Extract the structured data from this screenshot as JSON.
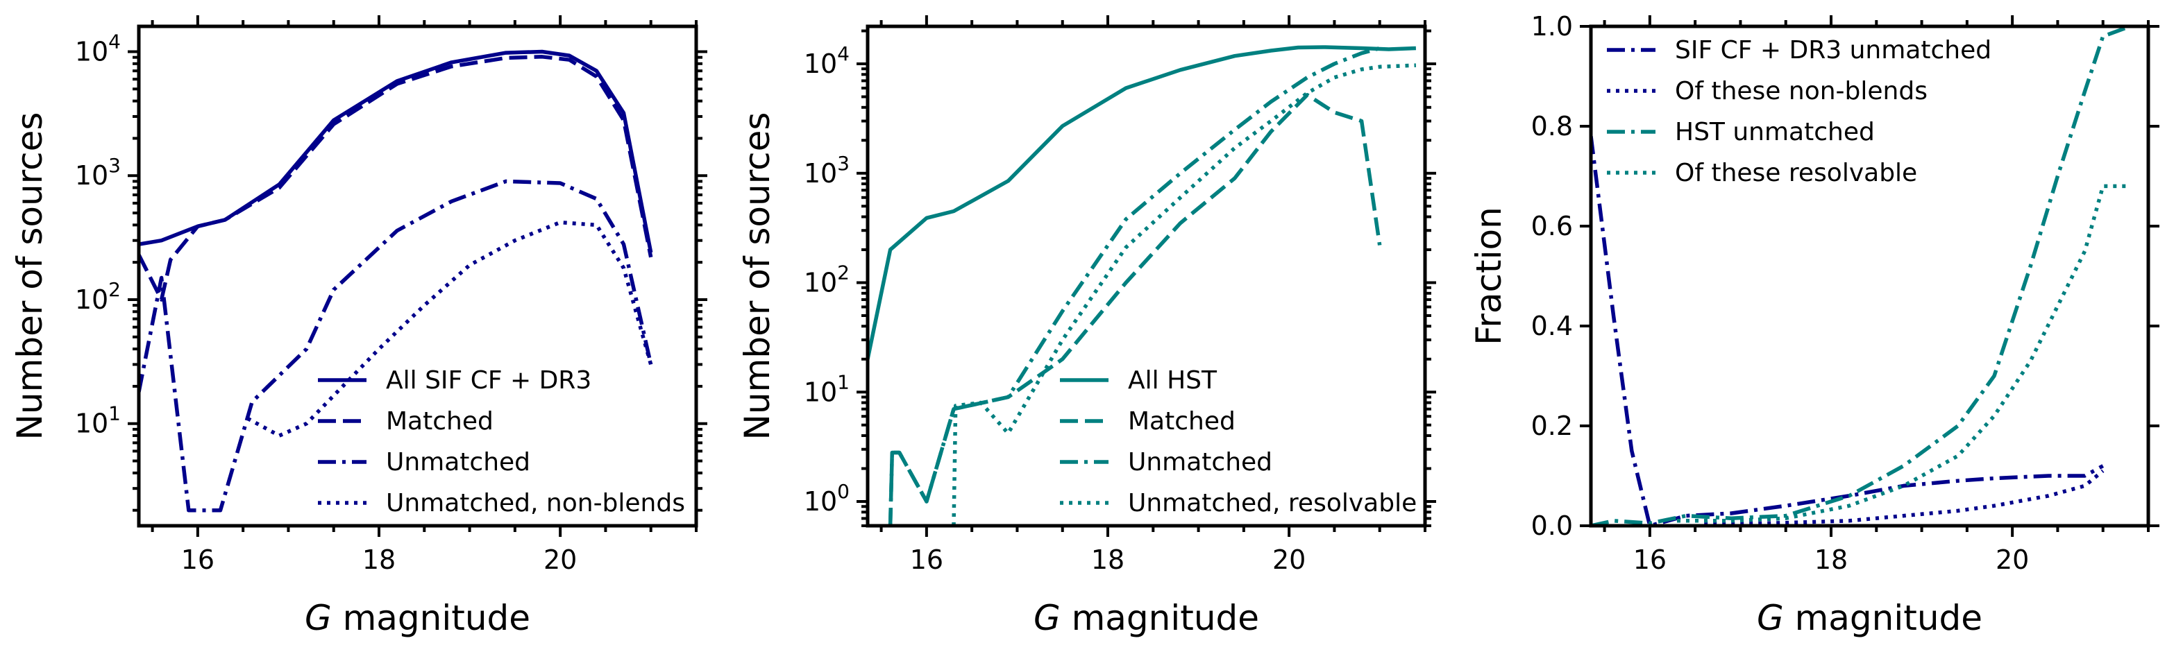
{
  "colors": {
    "navy": "#00008b",
    "teal": "#008080"
  },
  "chart_data": [
    {
      "type": "line",
      "yscale": "log",
      "xlabel_italic": "G",
      "xlabel_rest": " magnitude",
      "ylabel": "Number of sources",
      "xlim": [
        15.35,
        21.5
      ],
      "ylim": [
        1.5,
        16000
      ],
      "xticks": [
        16,
        18,
        20
      ],
      "xtick_labels": [
        "16",
        "18",
        "20"
      ],
      "ytick_values": [
        10,
        100,
        1000,
        10000
      ],
      "ytick_mantissas": [
        "10",
        "10",
        "10",
        "10"
      ],
      "ytick_exponents": [
        "1",
        "2",
        "3",
        "4"
      ],
      "legend_loc": "lower-right",
      "series": [
        {
          "name": "All SIF CF + DR3",
          "color": "#00008b",
          "dash": "solid",
          "x": [
            15.35,
            15.6,
            16.0,
            16.3,
            16.9,
            17.5,
            18.2,
            18.8,
            19.4,
            19.8,
            20.1,
            20.4,
            20.7,
            21.0
          ],
          "y": [
            280,
            300,
            390,
            440,
            850,
            2800,
            5800,
            8200,
            9800,
            10000,
            9300,
            7000,
            3200,
            240
          ]
        },
        {
          "name": "Matched",
          "color": "#00008b",
          "dash": "dashed",
          "x": [
            15.35,
            15.6,
            15.7,
            16.0,
            16.3,
            16.9,
            17.5,
            18.2,
            18.8,
            19.4,
            19.8,
            20.1,
            20.4,
            20.7,
            21.0
          ],
          "y": [
            230,
            100,
            210,
            390,
            440,
            800,
            2600,
            5500,
            7600,
            8900,
            9100,
            8600,
            6300,
            2800,
            220
          ]
        },
        {
          "name": "Unmatched",
          "color": "#00008b",
          "dash": "dashdot",
          "x": [
            15.35,
            15.6,
            15.9,
            16.25,
            16.6,
            17.2,
            17.5,
            18.2,
            18.8,
            19.4,
            20.0,
            20.4,
            20.7,
            21.0
          ],
          "y": [
            18,
            150,
            2,
            2,
            15,
            40,
            120,
            360,
            620,
            900,
            870,
            650,
            280,
            30
          ]
        },
        {
          "name": "Unmatched, non-blends",
          "color": "#00008b",
          "dash": "dotted",
          "x": [
            16.55,
            16.9,
            17.2,
            17.6,
            18.0,
            18.5,
            19.0,
            19.5,
            20.0,
            20.4,
            20.7,
            21.0
          ],
          "y": [
            11,
            8,
            10,
            20,
            40,
            90,
            190,
            300,
            420,
            400,
            180,
            30
          ]
        }
      ]
    },
    {
      "type": "line",
      "yscale": "log",
      "xlabel_italic": "G",
      "xlabel_rest": " magnitude",
      "ylabel": "Number of sources",
      "xlim": [
        15.35,
        21.5
      ],
      "ylim": [
        0.6,
        22000
      ],
      "xticks": [
        16,
        18,
        20
      ],
      "xtick_labels": [
        "16",
        "18",
        "20"
      ],
      "ytick_values": [
        1,
        10,
        100,
        1000,
        10000
      ],
      "ytick_mantissas": [
        "10",
        "10",
        "10",
        "10",
        "10"
      ],
      "ytick_exponents": [
        "0",
        "1",
        "2",
        "3",
        "4"
      ],
      "legend_loc": "lower-right",
      "series": [
        {
          "name": "All HST",
          "color": "#008080",
          "dash": "solid",
          "x": [
            15.35,
            15.6,
            16.0,
            16.3,
            16.9,
            17.5,
            18.2,
            18.8,
            19.4,
            19.8,
            20.1,
            20.4,
            20.8,
            21.1,
            21.4
          ],
          "y": [
            20,
            200,
            390,
            450,
            850,
            2700,
            6000,
            8800,
            11800,
            13200,
            14100,
            14200,
            13900,
            13600,
            13900
          ]
        },
        {
          "name": "Matched",
          "color": "#008080",
          "dash": "dashed",
          "x": [
            15.6,
            15.62,
            15.7,
            16.0,
            16.3,
            16.9,
            17.5,
            18.2,
            18.8,
            19.4,
            19.8,
            20.2,
            20.5,
            20.8,
            21.0
          ],
          "y": [
            0.6,
            2.8,
            2.8,
            1,
            7,
            9,
            20,
            100,
            350,
            900,
            2400,
            5200,
            3600,
            3000,
            220
          ]
        },
        {
          "name": "Unmatched",
          "color": "#008080",
          "dash": "dashdot",
          "x": [
            15.6,
            15.62,
            15.7,
            16.0,
            16.3,
            16.9,
            17.5,
            18.2,
            18.8,
            19.4,
            19.8,
            20.2,
            20.5,
            20.8,
            21.0
          ],
          "y": [
            0.6,
            2.8,
            2.8,
            1,
            7,
            9,
            55,
            380,
            1000,
            2500,
            4500,
            7500,
            10000,
            12500,
            13900
          ]
        },
        {
          "name": "Unmatched, resolvable",
          "color": "#008080",
          "dash": "dotted",
          "x": [
            16.3,
            16.32,
            16.6,
            16.9,
            17.5,
            18.2,
            18.8,
            19.4,
            19.8,
            20.2,
            20.5,
            20.8,
            21.0,
            21.4
          ],
          "y": [
            0.6,
            7.5,
            8,
            4.2,
            30,
            210,
            600,
            1700,
            3000,
            5400,
            7500,
            8900,
            9400,
            9700
          ]
        }
      ]
    },
    {
      "type": "line",
      "yscale": "linear",
      "xlabel_italic": "G",
      "xlabel_rest": " magnitude",
      "ylabel": "Fraction",
      "xlim": [
        15.35,
        21.5
      ],
      "ylim": [
        0,
        1.0
      ],
      "xticks": [
        16,
        18,
        20
      ],
      "xtick_labels": [
        "16",
        "18",
        "20"
      ],
      "ytick_values": [
        0.0,
        0.2,
        0.4,
        0.6,
        0.8,
        1.0
      ],
      "ytick_labels": [
        "0.0",
        "0.2",
        "0.4",
        "0.6",
        "0.8",
        "1.0"
      ],
      "legend_loc": "upper-left",
      "series": [
        {
          "name": "SIF CF + DR3 unmatched",
          "color": "#00008b",
          "dash": "dashdot",
          "x": [
            15.35,
            15.6,
            15.8,
            16.0,
            16.4,
            16.9,
            17.5,
            18.2,
            18.8,
            19.4,
            19.8,
            20.4,
            20.8,
            21.0
          ],
          "y": [
            0.78,
            0.42,
            0.15,
            0.0,
            0.02,
            0.025,
            0.04,
            0.06,
            0.08,
            0.09,
            0.095,
            0.1,
            0.1,
            0.12
          ]
        },
        {
          "name": "Of these non-blends",
          "color": "#00008b",
          "dash": "dotted",
          "x": [
            16.6,
            17.0,
            17.5,
            18.2,
            18.8,
            19.4,
            19.8,
            20.4,
            20.8,
            21.0
          ],
          "y": [
            0.005,
            0.004,
            0.006,
            0.01,
            0.02,
            0.03,
            0.04,
            0.06,
            0.08,
            0.11
          ]
        },
        {
          "name": "HST unmatched",
          "color": "#008080",
          "dash": "dashdot",
          "x": [
            15.35,
            15.6,
            16.0,
            16.4,
            16.9,
            17.5,
            18.2,
            18.8,
            19.4,
            19.8,
            20.2,
            20.5,
            20.8,
            21.0,
            21.3
          ],
          "y": [
            0.0,
            0.01,
            0.005,
            0.02,
            0.015,
            0.02,
            0.06,
            0.12,
            0.2,
            0.3,
            0.52,
            0.7,
            0.87,
            0.98,
            1.0
          ]
        },
        {
          "name": "Of these resolvable",
          "color": "#008080",
          "dash": "dotted",
          "x": [
            16.3,
            16.9,
            17.5,
            18.2,
            18.8,
            19.4,
            19.8,
            20.2,
            20.5,
            20.8,
            21.0,
            21.3
          ],
          "y": [
            0.01,
            0.01,
            0.015,
            0.04,
            0.08,
            0.14,
            0.22,
            0.33,
            0.44,
            0.55,
            0.68,
            0.68
          ]
        }
      ]
    }
  ]
}
